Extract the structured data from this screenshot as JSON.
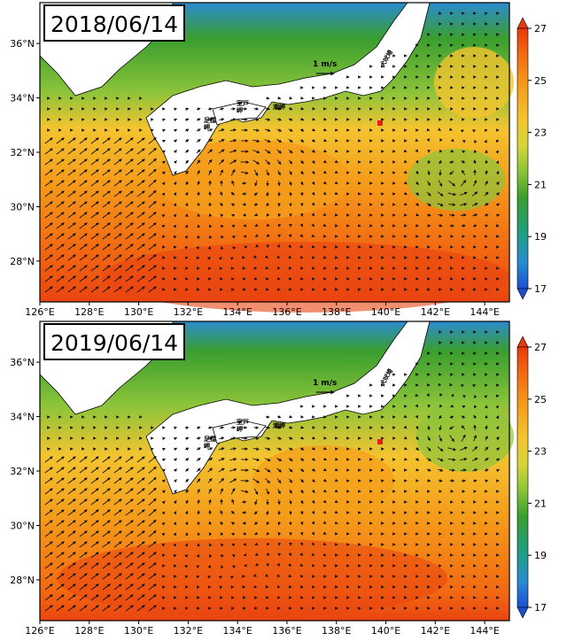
{
  "panels": [
    {
      "date": "2018/06/14"
    },
    {
      "date": "2019/06/14"
    }
  ],
  "axes": {
    "lon_ticks": [
      "126°E",
      "128°E",
      "130°E",
      "132°E",
      "134°E",
      "136°E",
      "138°E",
      "140°E",
      "142°E",
      "144°E"
    ],
    "lat_ticks": [
      "28°N",
      "30°N",
      "32°N",
      "34°N",
      "36°N"
    ],
    "lon_range": [
      126,
      145
    ],
    "lat_range": [
      26.5,
      37.5
    ]
  },
  "colorbar": {
    "ticks": [
      "17",
      "19",
      "21",
      "23",
      "25",
      "27"
    ],
    "min": 17,
    "max": 27,
    "unit": "",
    "colors": [
      "#1a4fd0",
      "#2b8bd0",
      "#1f9e8a",
      "#3a9e2e",
      "#8cc43a",
      "#d6d43a",
      "#f4c430",
      "#f59c1a",
      "#f26a12",
      "#e83a0c"
    ]
  },
  "labels": {
    "scale_arrow": "1 m/s",
    "muroto": "室戸\n岬",
    "ashizuri": "足摺\n岬",
    "shionomisaki": "潮岬",
    "inubosaki": "犬吠埼"
  },
  "colors": {
    "land": "#ffffff",
    "arrow": "#111111",
    "station_marker": "#e0201a"
  }
}
